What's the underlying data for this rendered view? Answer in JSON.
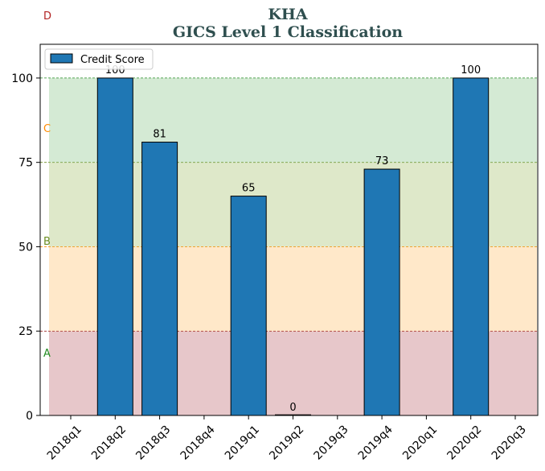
{
  "chart_data": {
    "type": "bar",
    "title": "KHA",
    "subtitle": "GICS Level 1 Classification",
    "categories": [
      "2018q1",
      "2018q2",
      "2018q3",
      "2018q4",
      "2019q1",
      "2019q2",
      "2019q3",
      "2019q4",
      "2020q1",
      "2020q2",
      "2020q3"
    ],
    "series": [
      {
        "name": "Credit Score",
        "values": [
          null,
          100,
          81,
          null,
          65,
          0,
          null,
          73,
          null,
          100,
          null
        ],
        "color": "#1f77b4"
      }
    ],
    "ylim": [
      0,
      110
    ],
    "yticks": [
      0,
      25,
      50,
      75,
      100
    ],
    "legend_position": "top-left",
    "bands": [
      {
        "from": 0,
        "to": 25,
        "color": "#c9828a",
        "line_color": "#8b0000"
      },
      {
        "from": 25,
        "to": 50,
        "color": "#ffcc88",
        "line_color": "#ff8c00"
      },
      {
        "from": 50,
        "to": 75,
        "color": "#b5cc88",
        "line_color": "#6b8e23"
      },
      {
        "from": 75,
        "to": 100,
        "color": "#9fd09f",
        "line_color": "#228b22"
      }
    ],
    "grade_labels": [
      {
        "text": "D",
        "color": "#b22222"
      },
      {
        "text": "C",
        "color": "#ff8c00"
      },
      {
        "text": "B",
        "color": "#6b8e23"
      },
      {
        "text": "A",
        "color": "#228b22"
      }
    ]
  }
}
